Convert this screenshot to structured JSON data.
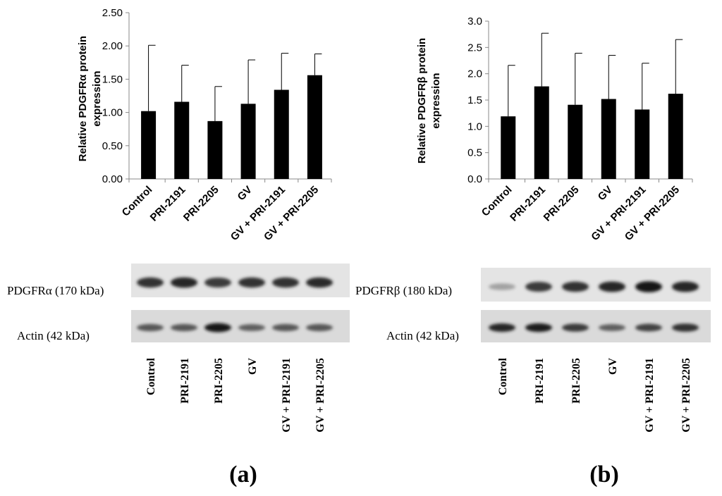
{
  "chart_data": [
    {
      "type": "bar",
      "panel": "(a)",
      "categories": [
        "Control",
        "PRI-2191",
        "PRI-2205",
        "GV",
        "GV + PRI-2191",
        "GV + PRI-2205"
      ],
      "values": [
        1.02,
        1.16,
        0.87,
        1.13,
        1.34,
        1.56
      ],
      "error_upper": [
        2.01,
        1.71,
        1.39,
        1.79,
        1.89,
        1.88
      ],
      "ylabel_lines": [
        "Relative PDGFRα protein",
        "expression"
      ],
      "ylim": [
        0,
        2.5
      ],
      "yticks": [
        "0.00",
        "0.50",
        "1.00",
        "1.50",
        "2.00",
        "2.50"
      ],
      "ytick_values": [
        0,
        0.5,
        1.0,
        1.5,
        2.0,
        2.5
      ],
      "grid": false,
      "legend": "none"
    },
    {
      "type": "bar",
      "panel": "(b)",
      "categories": [
        "Control",
        "PRI-2191",
        "PRI-2205",
        "GV",
        "GV + PRI-2191",
        "GV + PRI-2205"
      ],
      "values": [
        1.19,
        1.76,
        1.41,
        1.52,
        1.32,
        1.62
      ],
      "error_upper": [
        2.16,
        2.77,
        2.39,
        2.35,
        2.2,
        2.65
      ],
      "ylabel_lines": [
        "Relative PDGFRβ protein",
        "expression"
      ],
      "ylim": [
        0,
        3.0
      ],
      "yticks": [
        "0.0",
        "0.5",
        "1.0",
        "1.5",
        "2.0",
        "2.5",
        "3.0"
      ],
      "ytick_values": [
        0,
        0.5,
        1.0,
        1.5,
        2.0,
        2.5,
        3.0
      ],
      "grid": false,
      "legend": "none"
    }
  ],
  "blots": {
    "a": {
      "target_label": "PDGFRα (170 kDa)",
      "actin_label": "Actin (42 kDa)",
      "target_band_intensity": [
        0.8,
        0.85,
        0.75,
        0.8,
        0.8,
        0.82
      ],
      "actin_band_intensity": [
        0.6,
        0.6,
        0.95,
        0.55,
        0.6,
        0.6
      ],
      "lanes": [
        "Control",
        "PRI-2191",
        "PRI-2205",
        "GV",
        "GV + PRI-2191",
        "GV + PRI-2205"
      ]
    },
    "b": {
      "target_label": "PDGFRβ (180 kDa)",
      "actin_label": "Actin (42 kDa)",
      "target_band_intensity": [
        0.2,
        0.75,
        0.8,
        0.85,
        0.95,
        0.85
      ],
      "actin_band_intensity": [
        0.85,
        0.9,
        0.75,
        0.55,
        0.7,
        0.8
      ],
      "lanes": [
        "Control",
        "PRI-2191",
        "PRI-2205",
        "GV",
        "GV + PRI-2191",
        "GV + PRI-2205"
      ]
    }
  },
  "panel_labels": {
    "a": "(a)",
    "b": "(b)"
  }
}
